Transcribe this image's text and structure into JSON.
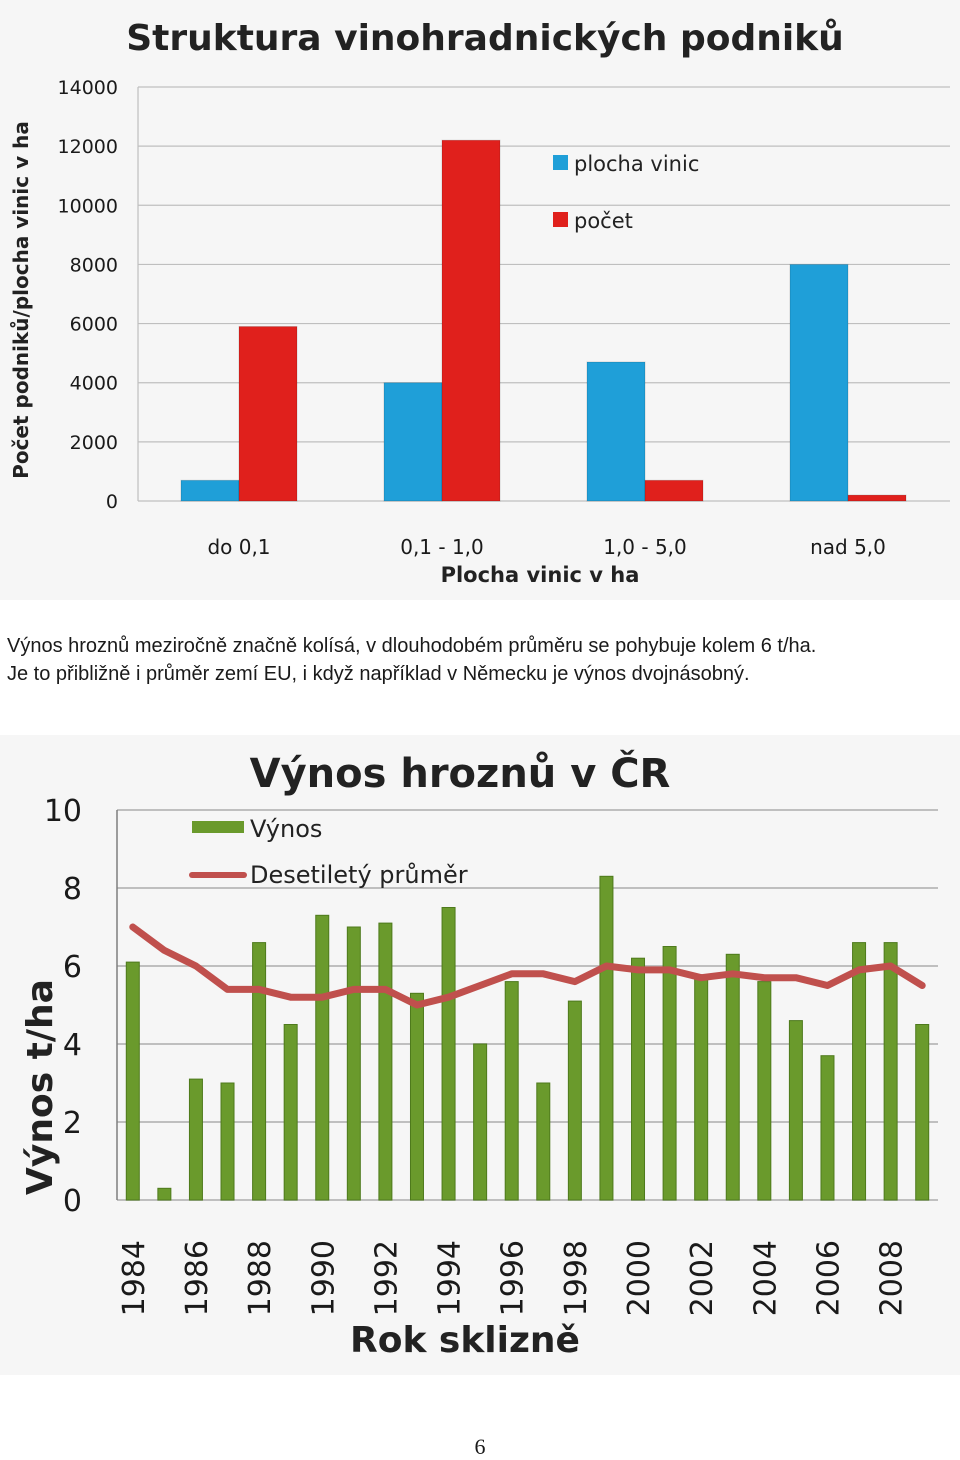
{
  "text": {
    "line1": "Výnos hroznů meziročně značně kolísá, v dlouhodobém průměru se pohybuje kolem 6 t/ha.",
    "line2": "Je to přibližně i průměr zemí EU, i když například v Německu je výnos dvojnásobný."
  },
  "page_number": "6",
  "colors": {
    "plocha": "#1f9fd8",
    "pocet": "#e0201c",
    "vynos": "#6a9a2c",
    "prumer": "#c0504d",
    "grid": "#bfbfbf",
    "axis": "#7f7f7f",
    "text": "#1a1a1a"
  },
  "chart_data": [
    {
      "type": "bar",
      "title": "Struktura vinohradnických podniků",
      "xlabel": "Plocha vinic v ha",
      "ylabel": "Počet podniků/plocha vinic v ha",
      "categories": [
        "do 0,1",
        "0,1 - 1,0",
        "1,0 - 5,0",
        "nad 5,0"
      ],
      "ylim": [
        0,
        14000
      ],
      "yticks": [
        "0",
        "2000",
        "4000",
        "6000",
        "8000",
        "10000",
        "12000",
        "14000"
      ],
      "grid": true,
      "legend": "right",
      "series": [
        {
          "name": "plocha vinic",
          "values": [
            700,
            4000,
            4700,
            8000
          ]
        },
        {
          "name": "počet",
          "values": [
            5900,
            12200,
            700,
            200
          ]
        }
      ]
    },
    {
      "type": "bar",
      "title": "Výnos hroznů v ČR",
      "xlabel": "Rok sklizně",
      "ylabel": "Výnos t/ha",
      "ylim": [
        0,
        10
      ],
      "yticks": [
        "0",
        "2",
        "4",
        "6",
        "8",
        "10"
      ],
      "grid": true,
      "legend": "top-left",
      "years": [
        1984,
        1985,
        1986,
        1987,
        1988,
        1989,
        1990,
        1991,
        1992,
        1993,
        1994,
        1995,
        1996,
        1997,
        1998,
        1999,
        2000,
        2001,
        2002,
        2003,
        2004,
        2005,
        2006,
        2007,
        2008,
        2009
      ],
      "tick_labels": [
        "1984",
        "1986",
        "1988",
        "1990",
        "1992",
        "1994",
        "1996",
        "1998",
        "2000",
        "2002",
        "2004",
        "2006",
        "2008"
      ],
      "series": [
        {
          "name": "Výnos",
          "kind": "bar",
          "values": [
            6.1,
            0.3,
            3.1,
            3.0,
            6.6,
            4.5,
            7.3,
            7.0,
            7.1,
            5.3,
            7.5,
            4.0,
            5.6,
            3.0,
            5.1,
            8.3,
            6.2,
            6.5,
            5.7,
            6.3,
            5.6,
            4.6,
            3.7,
            6.6,
            6.6,
            4.5
          ]
        },
        {
          "name": "Desetiletý průměr",
          "kind": "line",
          "values": [
            7.0,
            6.4,
            6.0,
            5.4,
            5.4,
            5.2,
            5.2,
            5.4,
            5.4,
            5.0,
            5.2,
            5.5,
            5.8,
            5.8,
            5.6,
            6.0,
            5.9,
            5.9,
            5.7,
            5.8,
            5.7,
            5.7,
            5.5,
            5.9,
            6.0,
            5.5
          ]
        }
      ]
    }
  ]
}
